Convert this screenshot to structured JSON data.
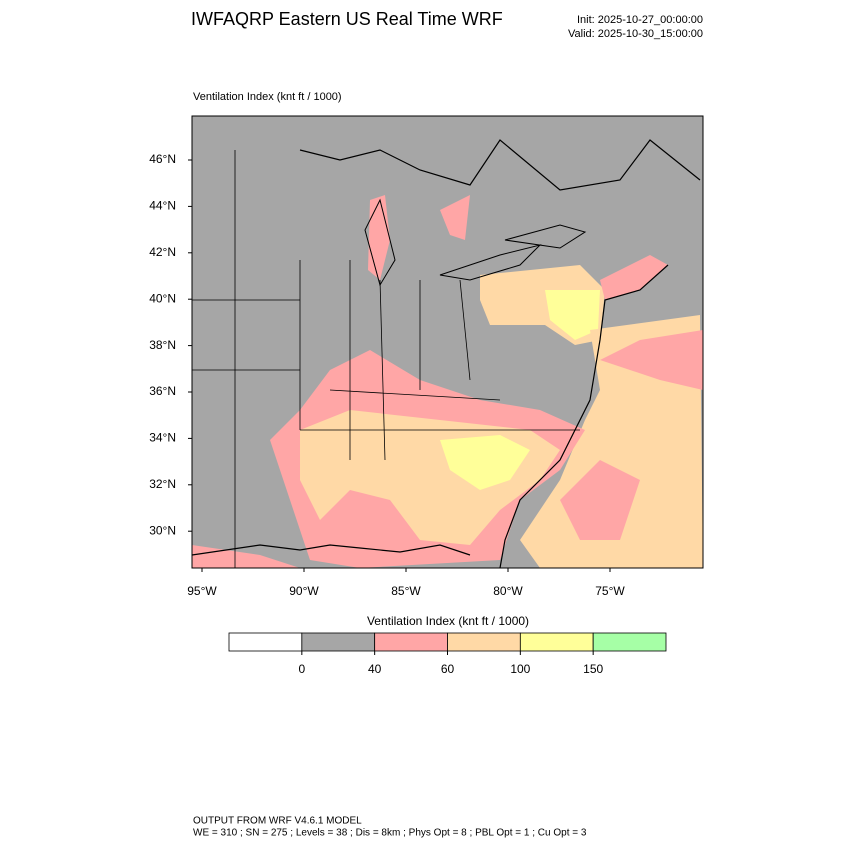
{
  "header": {
    "title": "IWFAQRP Eastern US Real Time WRF",
    "init": "Init: 2025-10-27_00:00:00",
    "valid": "Valid: 2025-10-30_15:00:00"
  },
  "map": {
    "label": "Ventilation Index   (knt ft / 1000)",
    "lat_labels": [
      "46°N",
      "44°N",
      "42°N",
      "40°N",
      "38°N",
      "36°N",
      "34°N",
      "32°N",
      "30°N"
    ],
    "lon_labels": [
      "95°W",
      "90°W",
      "85°W",
      "80°W",
      "75°W"
    ]
  },
  "colorbar": {
    "title": "Ventilation Index  (knt ft / 1000)",
    "colors": [
      "#ffffff",
      "#a6a6a6",
      "#ffa6a6",
      "#ffd9a6",
      "#ffff99",
      "#a6ffa6"
    ],
    "ticks": [
      0,
      40,
      60,
      100,
      150
    ]
  },
  "footer": {
    "line1": "OUTPUT FROM WRF V4.6.1 MODEL",
    "line2": "WE = 310 ; SN = 275 ; Levels = 38 ; Dis = 8km ; Phys Opt = 8 ; PBL Opt = 1 ; Cu Opt = 3"
  }
}
